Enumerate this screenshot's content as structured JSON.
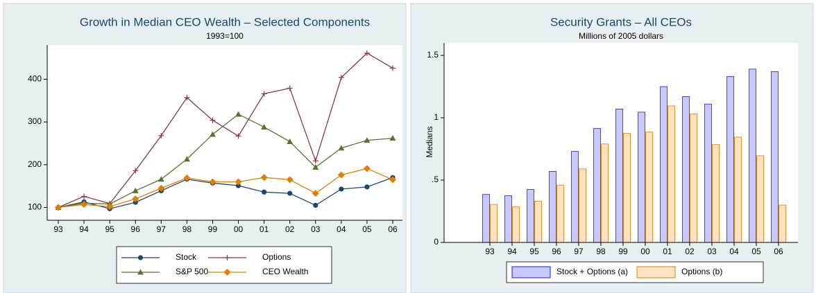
{
  "chart_data": [
    {
      "type": "line",
      "title": "Growth in Median CEO Wealth – Selected Components",
      "subtitle": "1993=100",
      "categories": [
        "93",
        "94",
        "95",
        "96",
        "97",
        "98",
        "99",
        "00",
        "01",
        "02",
        "03",
        "04",
        "05",
        "06"
      ],
      "ylim": [
        70,
        480
      ],
      "yticks": [
        100,
        200,
        300,
        400
      ],
      "series": [
        {
          "name": "Stock",
          "color": "#1a476f",
          "marker": "circle",
          "values": [
            100,
            113,
            97,
            112,
            139,
            166,
            157,
            151,
            136,
            133,
            105,
            143,
            148,
            170
          ]
        },
        {
          "name": "Options",
          "color": "#90353b",
          "marker": "plus",
          "values": [
            100,
            126,
            109,
            186,
            268,
            357,
            304,
            267,
            366,
            379,
            209,
            404,
            461,
            426
          ]
        },
        {
          "name": "S&P 500",
          "color": "#55752f",
          "marker": "triangle",
          "values": [
            100,
            110,
            108,
            139,
            166,
            213,
            271,
            318,
            288,
            254,
            194,
            239,
            257,
            262
          ]
        },
        {
          "name": "CEO Wealth",
          "color": "#e37e00",
          "marker": "diamond",
          "values": [
            100,
            107,
            102,
            120,
            145,
            169,
            160,
            160,
            170,
            165,
            133,
            176,
            191,
            165
          ]
        }
      ]
    },
    {
      "type": "bar",
      "title": "Security Grants – All CEOs",
      "subtitle": "Millions of 2005 dollars",
      "y_label": "Medians",
      "categories": [
        "93",
        "94",
        "95",
        "96",
        "97",
        "98",
        "99",
        "00",
        "01",
        "02",
        "03",
        "04",
        "05",
        "06"
      ],
      "ylim": [
        0,
        1.6
      ],
      "yticks": [
        0,
        {
          "value": 0.5,
          "label": ".5"
        },
        1,
        1.5
      ],
      "series": [
        {
          "name": "Stock + Options (a)",
          "color": "#1a1aee",
          "fill": "#c8c8ff",
          "values": [
            0.385,
            0.375,
            0.425,
            0.57,
            0.73,
            0.915,
            1.07,
            1.045,
            1.25,
            1.17,
            1.11,
            1.33,
            1.39,
            1.37
          ]
        },
        {
          "name": "Options (b)",
          "color": "#e37e00",
          "fill": "#fde3c4",
          "values": [
            0.305,
            0.285,
            0.33,
            0.46,
            0.59,
            0.79,
            0.875,
            0.885,
            1.095,
            1.03,
            0.785,
            0.845,
            0.695,
            0.3
          ]
        }
      ]
    }
  ]
}
